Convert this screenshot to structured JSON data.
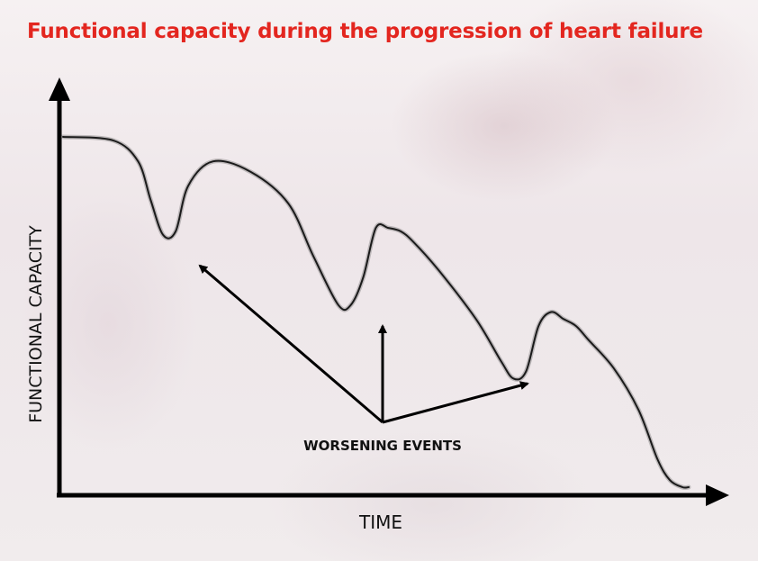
{
  "title": "Functional capacity during the progression of heart failure",
  "chart_data": {
    "type": "line",
    "title": "Functional capacity during the progression of heart failure",
    "xlabel": "TIME",
    "ylabel": "FUNCTIONAL CAPACITY",
    "grid": false,
    "legend": "none",
    "x_ticks_shown": false,
    "y_ticks_shown": false,
    "xlim": [
      0,
      100
    ],
    "ylim": [
      0,
      100
    ],
    "series": [
      {
        "color": "#1a1a1a",
        "x": [
          0,
          8,
          12,
          14,
          16,
          18,
          20,
          24,
          30,
          36,
          40,
          44,
          46,
          48,
          50,
          52,
          54,
          56,
          60,
          66,
          70,
          72,
          74,
          76,
          78,
          80,
          82,
          84,
          88,
          92,
          95,
          97,
          99,
          100
        ],
        "y": [
          100,
          99,
          93,
          82,
          72,
          73,
          86,
          93,
          90,
          81,
          66,
          52,
          52,
          60,
          74,
          74,
          73,
          70,
          62,
          48,
          36,
          31,
          33,
          46,
          50,
          48,
          46,
          42,
          34,
          22,
          8,
          2,
          0,
          0
        ]
      }
    ],
    "annotations": [
      {
        "text": "WORSENING EVENTS",
        "points_to": "minimum 1"
      },
      {
        "text": "WORSENING EVENTS",
        "points_to": "minimum 2"
      },
      {
        "text": "WORSENING EVENTS",
        "points_to": "minimum 3"
      }
    ],
    "axis_color": "#000000",
    "title_color": "#e3261f"
  }
}
